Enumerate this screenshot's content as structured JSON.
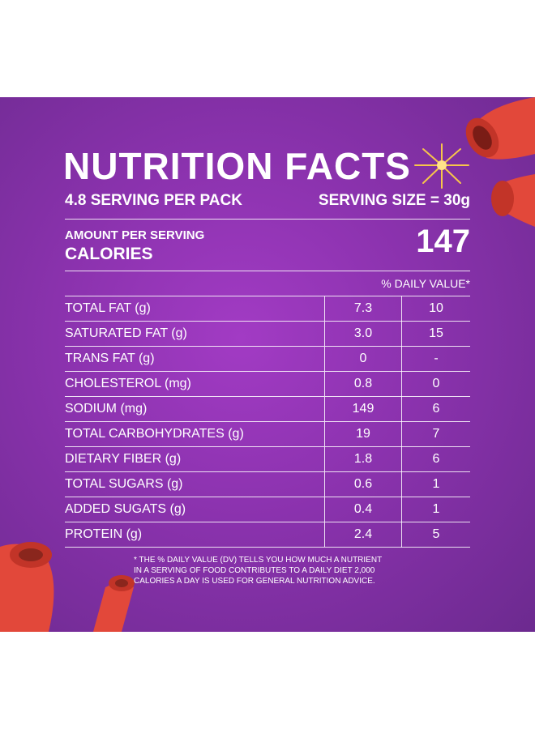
{
  "title": "NUTRITION FACTS",
  "servings_per_pack": "4.8 SERVING PER PACK",
  "serving_size": "SERVING SIZE = 30g",
  "amount_per_serving": "AMOUNT PER SERVING",
  "calories_label": "CALORIES",
  "calories_value": "147",
  "daily_value_header": "% DAILY VALUE*",
  "nutrients": [
    {
      "name": "TOTAL FAT (g)",
      "amount": "7.3",
      "dv": "10"
    },
    {
      "name": "SATURATED FAT (g)",
      "amount": "3.0",
      "dv": "15"
    },
    {
      "name": "TRANS FAT (g)",
      "amount": "0",
      "dv": "-"
    },
    {
      "name": "CHOLESTEROL (mg)",
      "amount": "0.8",
      "dv": "0"
    },
    {
      "name": "SODIUM (mg)",
      "amount": "149",
      "dv": "6"
    },
    {
      "name": "TOTAL CARBOHYDRATES (g)",
      "amount": "19",
      "dv": "7"
    },
    {
      "name": "DIETARY FIBER (g)",
      "amount": "1.8",
      "dv": "6"
    },
    {
      "name": "TOTAL SUGARS (g)",
      "amount": "0.6",
      "dv": "1"
    },
    {
      "name": "ADDED SUGATS (g)",
      "amount": "0.4",
      "dv": "1"
    },
    {
      "name": "PROTEIN (g)",
      "amount": "2.4",
      "dv": "5"
    }
  ],
  "footnote": [
    "* THE % DAILY VALUE (DV) TELLS YOU HOW MUCH A NUTRIENT",
    "IN A SERVING OF FOOD CONTRIBUTES TO A DAILY DIET 2,000",
    "CALORIES A DAY IS USED FOR GENERAL NUTRITION ADVICE."
  ],
  "colors": {
    "background": "#8a32ad",
    "text": "#ffffff",
    "snack": "#e2483a"
  }
}
